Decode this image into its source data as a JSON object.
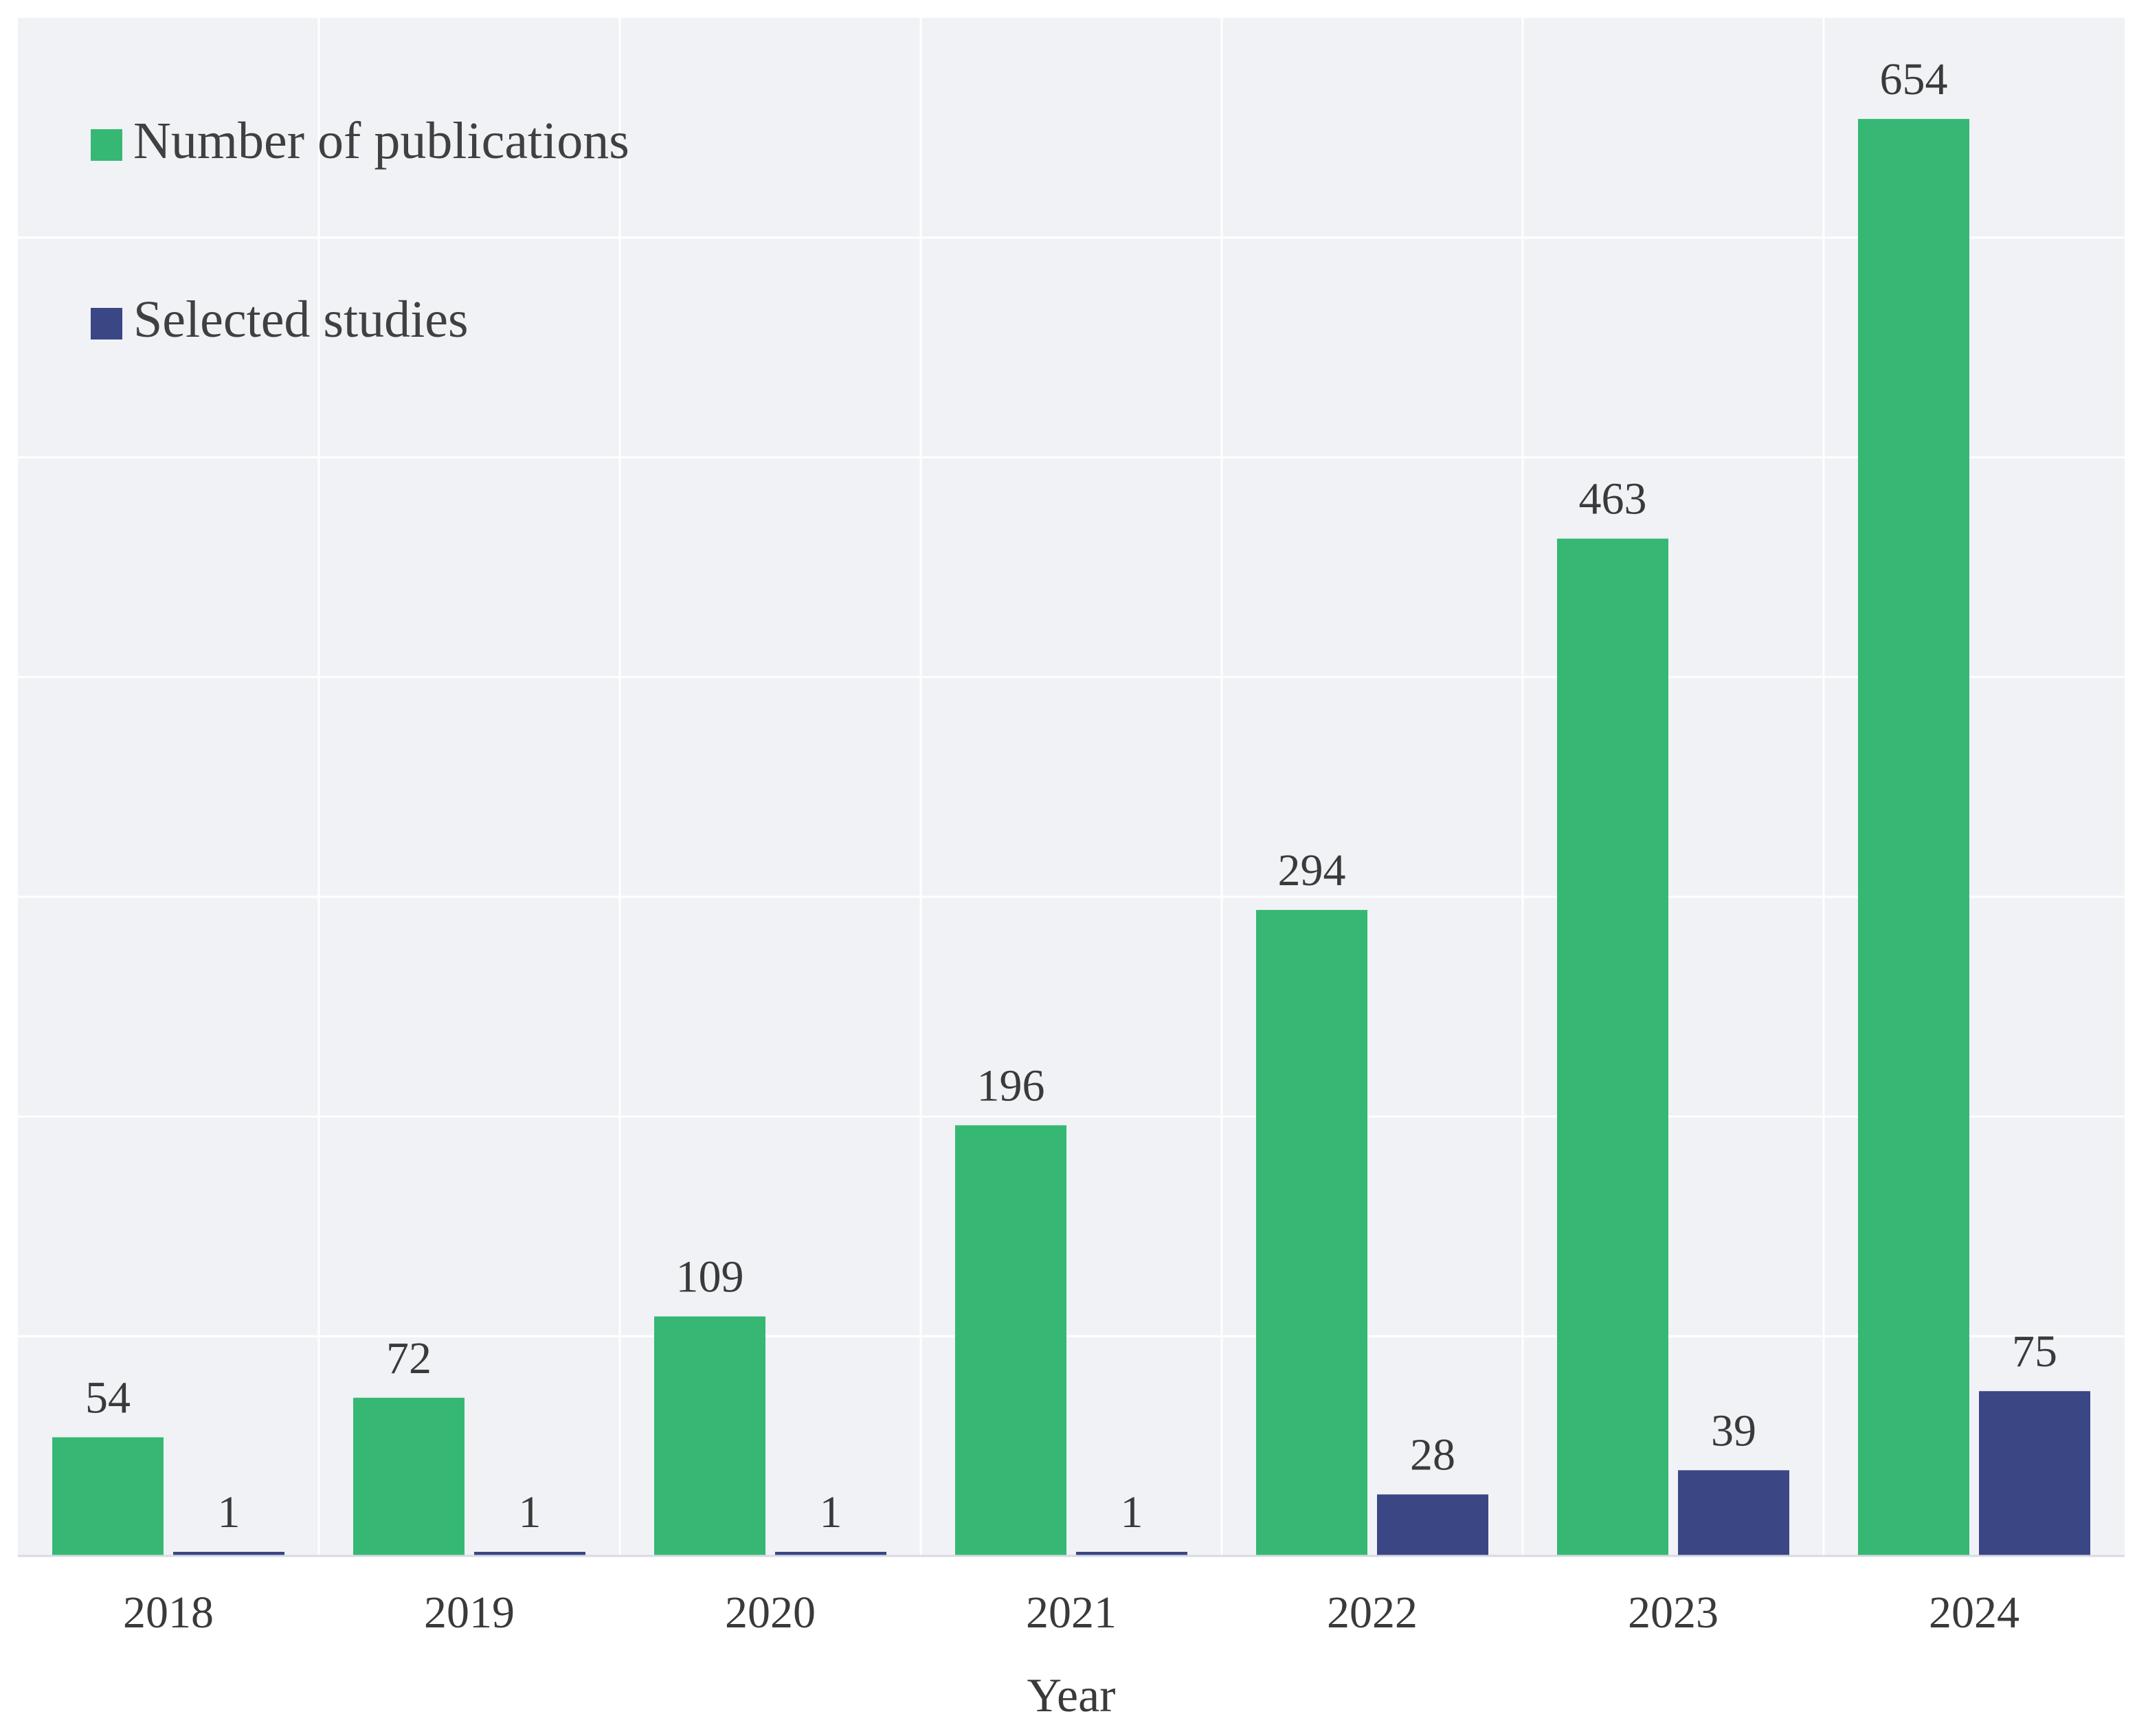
{
  "chart_data": {
    "type": "bar",
    "title": "",
    "xlabel": "Year",
    "ylabel": "",
    "categories": [
      "2018",
      "2019",
      "2020",
      "2021",
      "2022",
      "2023",
      "2024"
    ],
    "series": [
      {
        "name": "Number of publications",
        "color": "#36b874",
        "values": [
          54,
          72,
          109,
          196,
          294,
          463,
          654
        ]
      },
      {
        "name": "Selected studies",
        "color": "#3b4685",
        "values": [
          1,
          1,
          1,
          1,
          28,
          39,
          75
        ]
      }
    ],
    "ylim": [
      0,
      700
    ],
    "grid": true,
    "legend_position": "top-left",
    "background_color": "#f0f2f6",
    "grid_color": "#ffffff"
  }
}
